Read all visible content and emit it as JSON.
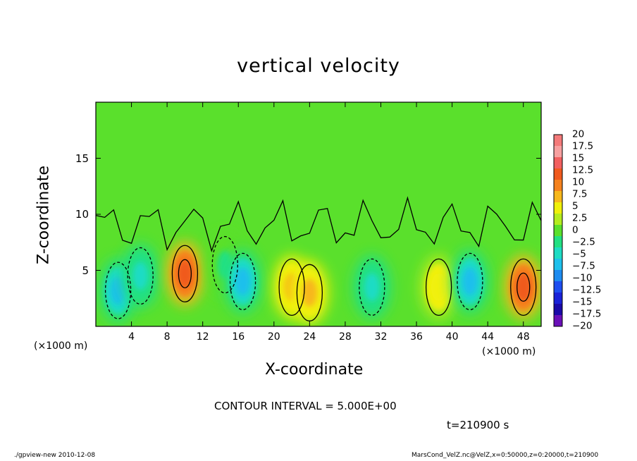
{
  "chart_data": {
    "type": "heatmap",
    "title": "vertical velocity",
    "xlabel": "X-coordinate",
    "ylabel": "Z-coordinate",
    "x_unit": "(×1000 m)",
    "xlim": [
      0,
      50
    ],
    "ylim": [
      0,
      20
    ],
    "x_ticks": [
      "4",
      "8",
      "12",
      "16",
      "20",
      "24",
      "28",
      "32",
      "36",
      "40",
      "44",
      "48"
    ],
    "y_ticks": [
      "5",
      "10",
      "15"
    ],
    "colorbar": {
      "levels": [
        "20",
        "17.5",
        "15",
        "12.5",
        "10",
        "7.5",
        "5",
        "2.5",
        "0",
        "−2.5",
        "−5",
        "−7.5",
        "−10",
        "−12.5",
        "−15",
        "−17.5",
        "−20"
      ],
      "colors": [
        "#f47a7a",
        "#f7a0a0",
        "#f26060",
        "#f05a1e",
        "#f5821e",
        "#f7b81c",
        "#f0f00a",
        "#b4ec1e",
        "#5ae02c",
        "#22e082",
        "#1edcc4",
        "#1ec0ec",
        "#1e8cf0",
        "#1e4ef0",
        "#1a22d8",
        "#1a0aa8",
        "#6a10b8"
      ]
    },
    "features": [
      {
        "x": 2.5,
        "z": 3.2,
        "value": -8
      },
      {
        "x": 5,
        "z": 4.5,
        "value": -6
      },
      {
        "x": 10,
        "z": 4.7,
        "value": 12
      },
      {
        "x": 14.5,
        "z": 5.5,
        "value": -3
      },
      {
        "x": 16.5,
        "z": 4,
        "value": -9
      },
      {
        "x": 22,
        "z": 3.5,
        "value": 7
      },
      {
        "x": 24,
        "z": 3,
        "value": 7
      },
      {
        "x": 31,
        "z": 3.5,
        "value": -6
      },
      {
        "x": 38.5,
        "z": 3.5,
        "value": 4
      },
      {
        "x": 42,
        "z": 4,
        "value": -8
      },
      {
        "x": 48,
        "z": 3.5,
        "value": 12
      }
    ],
    "contour_interval": "CONTOUR INTERVAL = 5.000E+00",
    "time": "t=210900 s"
  },
  "footer": {
    "left": "./gpview-new   2010-12-08",
    "right": "MarsCond_VelZ.nc@VelZ,x=0:50000,z=0:20000,t=210900"
  }
}
